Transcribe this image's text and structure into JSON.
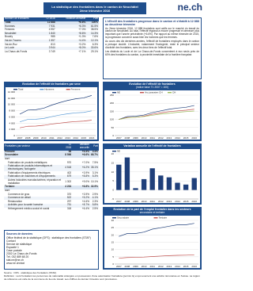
{
  "header": {
    "logo": "ne.ch",
    "title": "La statistique des frontaliers dans le canton de Neuchâtel",
    "subtitle": "2ème trimestre 2016"
  },
  "table_1": {
    "columns": [
      "Nombre de frontaliers",
      "T2 2016",
      "Variation annuelle",
      "Part"
    ],
    "rows": [
      [
        "Total",
        "12 888",
        "+6.6%",
        "100%"
      ],
      [
        "Hommes",
        "7 931",
        "+6.3%",
        "61.5%"
      ],
      [
        "Femmes",
        "4 957",
        "+7.0%",
        "38.5%"
      ],
      [
        "Neuchâtel",
        "1 840",
        "+8.6%",
        "14.3%"
      ],
      [
        "Boudry",
        "985",
        "+1.3%",
        "7.6%"
      ],
      [
        "Val-de-Travers",
        "1 557",
        "+4.4%",
        "12.1%"
      ],
      [
        "Val-de-Ruz",
        "813",
        "+3.2%",
        "6.3%"
      ],
      [
        "Le Locle",
        "3 944",
        "+8.0%",
        "30.6%"
      ],
      [
        "La Chaux-de-Fonds",
        "3 749",
        "+7.1%",
        "29.1%"
      ]
    ]
  },
  "news": {
    "title": "L'effectif des frontaliers progresse dans le canton et s'établit à 12 888 au deuxième trimestre",
    "paragraphs": [
      "Au 2ème trimestre 2016, 12 888 frontaliers sont actifs sur le marché du travail du canton de Neuchâtel. Au total, l'effectif régional a encore progressé et demeure plus important que l'année précédente (+6.6%). Par rapport au même trimestre de 2015, la progression concerne aussi bien les hommes que les femmes.",
      "Au cours des dix dernières années, l'effectif de frontaliers employés dans le canton a presque doublé. L'industrie, notamment l'horlogerie, reste le principal secteur d'activité des frontaliers, avec les deux tiers de l'effectif total.",
      "Les districts du Locle et de La Chaux-de-Fonds concentrent à eux seuls près de 60% des frontaliers du canton, à proximité immédiate de la frontière française."
    ]
  },
  "table_2": {
    "columns": [
      "Frontaliers par secteur",
      "T2 2016",
      "Variation annuelle",
      "Part"
    ],
    "groups": [
      {
        "row": [
          "Primaire",
          "58",
          "+5.5%",
          "0.4%"
        ],
        "details": []
      },
      {
        "row": [
          "Secondaire",
          "8 596",
          "+6.6%",
          "66.7%"
        ],
        "detail_label": "dont",
        "details": [
          [
            "Fabrication de produits métalliques",
            "970",
            "+7.0%",
            "7.5%"
          ],
          [
            "Fabrication de produits informatiques et électroniques; horlogerie",
            "4 518",
            "+6.2%",
            "35.1%"
          ],
          [
            "Fabrication d'équipements électriques",
            "402",
            "+3.9%",
            "3.1%"
          ],
          [
            "Fabrication de machines et d'équipements",
            "679",
            "+8.8%",
            "5.3%"
          ],
          [
            "Autres industries manufacturières; réparation et installation",
            "1 302",
            "+9.0%",
            "10.1%"
          ]
        ]
      },
      {
        "row": [
          "Tertiaire",
          "4 234",
          "+6.8%",
          "32.9%"
        ],
        "detail_label": "dont",
        "details": [
          [
            "Commerce de gros",
            "370",
            "+3.9%",
            "2.9%"
          ],
          [
            "Commerce de détail",
            "522",
            "+5.2%",
            "4.1%"
          ],
          [
            "Restauration",
            "297",
            "+4.6%",
            "2.3%"
          ],
          [
            "Activités pour la santé humaine",
            "751",
            "+8.7%",
            "5.8%"
          ],
          [
            "Hébergement médico-social et social",
            "318",
            "+6.4%",
            "2.5%"
          ]
        ]
      }
    ]
  },
  "sources": {
    "title": "Sources de données",
    "lines": [
      "Office fédéral de la statistique (OFS) : statistique des frontaliers (STAF)",
      "Contact",
      "Service de statistique",
      "Espacité 1",
      "Case postale",
      "2302 La Chaux-de-Fonds",
      "Tél. 032 889 68 20",
      "stat.ne@ne.ch",
      "www.ne.ch/stat"
    ]
  },
  "footer": {
    "source": "Source : OFS - statistique des frontaliers (STAF)",
    "definition": "Définition : sont frontaliers les personnes de nationalité étrangère en possession d'une autorisation frontalière (permis G) et qui exercent une activité rémunérée en Suisse. La région de référence est celle de la commune du lieu de travail. Les chiffres du dernier trimestre sont provisoires."
  },
  "chart_data": [
    {
      "type": "line",
      "title": "Evolution de l'effectif de frontaliers par sexe",
      "categories": [
        "2007",
        "2008",
        "2009",
        "2010",
        "2011",
        "2012",
        "2013",
        "2014",
        "2015",
        "2016"
      ],
      "series": [
        {
          "name": "Total",
          "color": "#1f3f7a",
          "values": [
            6900,
            8200,
            8300,
            8800,
            9800,
            10600,
            11300,
            11800,
            12100,
            12888
          ]
        },
        {
          "name": "Hommes",
          "color": "#5b9bd5",
          "values": [
            4400,
            5200,
            5250,
            5500,
            6100,
            6600,
            7000,
            7300,
            7450,
            7931
          ]
        },
        {
          "name": "Femmes",
          "color": "#c0504d",
          "values": [
            2500,
            3000,
            3050,
            3300,
            3700,
            4000,
            4300,
            4500,
            4650,
            4957
          ]
        }
      ],
      "ylim": [
        0,
        14000
      ],
      "yticks": [
        {
          "value": 0,
          "label": "0"
        },
        {
          "value": 2000,
          "label": "2 000"
        },
        {
          "value": 4000,
          "label": "4 000"
        },
        {
          "value": 6000,
          "label": "6 000"
        },
        {
          "value": 8000,
          "label": "8 000"
        },
        {
          "value": 10000,
          "label": "10 000"
        },
        {
          "value": 12000,
          "label": "12 000"
        },
        {
          "value": 14000,
          "label": "14 000"
        }
      ],
      "grid": true
    },
    {
      "type": "line",
      "title": "Evolution de l'effectif de frontaliers",
      "subtitle": "(indice base T1 2007 = 100)",
      "categories": [
        "2007",
        "2008",
        "2009",
        "2010",
        "2011",
        "2012",
        "2013",
        "2014",
        "2015",
        "2016"
      ],
      "series": [
        {
          "name": "NE",
          "color": "#1f3f7a",
          "values": [
            100,
            118,
            120,
            127,
            142,
            153,
            163,
            170,
            175,
            186
          ]
        },
        {
          "name": "Arc jurassien CH",
          "color": "#c0504d",
          "values": [
            100,
            112,
            113,
            120,
            132,
            141,
            148,
            153,
            157,
            163
          ]
        },
        {
          "name": "CH",
          "color": "#9bbb59",
          "values": [
            100,
            110,
            113,
            118,
            126,
            133,
            138,
            144,
            148,
            152
          ]
        }
      ],
      "ylim": [
        0,
        250
      ],
      "yticks": [
        0,
        50,
        100,
        150,
        200,
        250
      ],
      "grid": true
    },
    {
      "type": "bar",
      "title": "Variation annuelle de l'effectif de frontaliers",
      "categories": [
        "2007",
        "2008",
        "2009",
        "2010",
        "2011",
        "2012",
        "2013",
        "2014",
        "2015",
        "2016"
      ],
      "series": [
        {
          "name": "NE",
          "color": "#1f3f7a",
          "values": [
            14,
            18,
            1,
            6,
            12,
            8,
            7,
            4,
            3,
            6.6
          ]
        }
      ],
      "ylim": [
        -5,
        20
      ],
      "yticks": [
        -5,
        0,
        5,
        10,
        15,
        20
      ],
      "grid": true
    },
    {
      "type": "line",
      "title": "Evolution de la part de l'emploi frontalier dans les secteurs",
      "subtitle": "secondaire et tertiaire",
      "categories": [
        "2007",
        "2008",
        "2009",
        "2010",
        "2011",
        "2012",
        "2013",
        "2014",
        "2015",
        "2016"
      ],
      "series": [
        {
          "name": "Secondaire",
          "color": "#1f3f7a",
          "values": [
            19,
            21,
            21,
            22,
            24,
            25,
            26,
            27,
            27,
            28
          ]
        },
        {
          "name": "Tertiaire",
          "color": "#c0504d",
          "values": [
            4,
            4.5,
            4.6,
            4.8,
            5.2,
            5.5,
            5.8,
            6,
            6.1,
            6.3
          ]
        }
      ],
      "ylim": [
        0,
        30
      ],
      "yticks": [
        0,
        5,
        10,
        15,
        20,
        25,
        30
      ],
      "grid": true
    }
  ]
}
